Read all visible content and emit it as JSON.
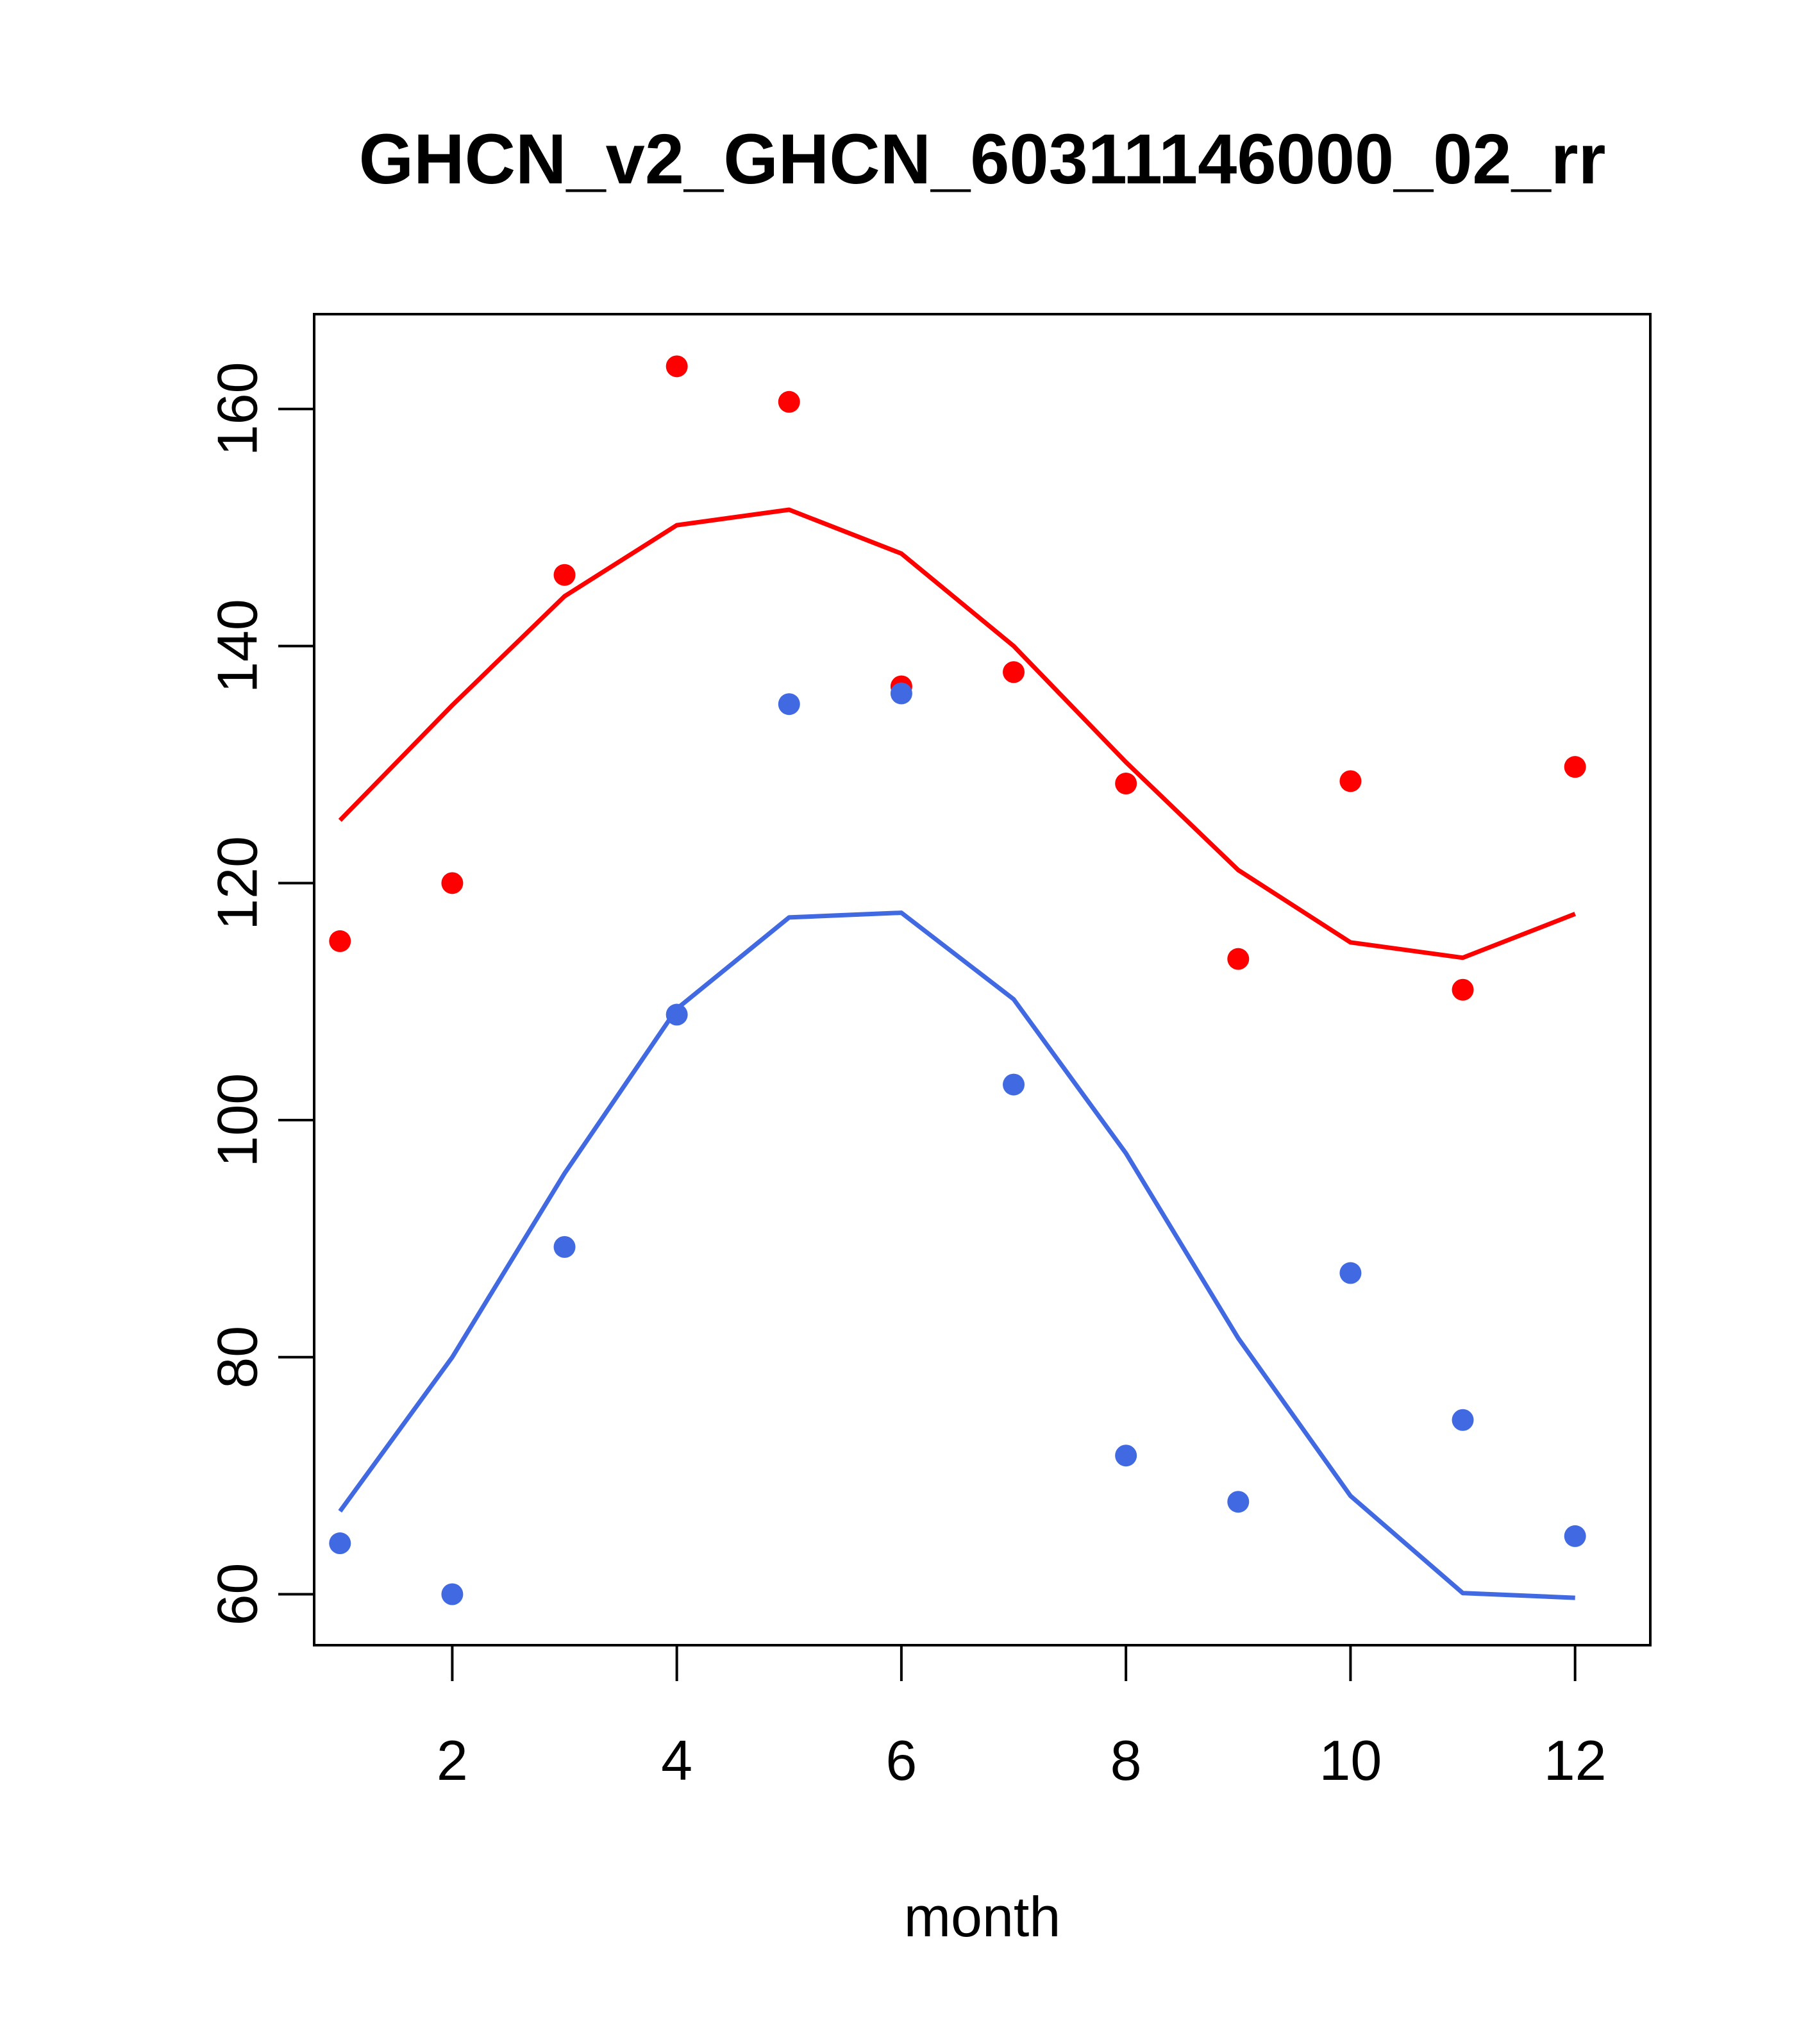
{
  "chart_data": {
    "type": "scatter",
    "title": "GHCN_v2_GHCN_60311146000_02_rr",
    "xlabel": "month",
    "ylabel": "",
    "xlim": [
      0.77,
      12.67
    ],
    "ylim": [
      55.7,
      168
    ],
    "x_ticks": [
      2,
      4,
      6,
      8,
      10,
      12
    ],
    "y_ticks": [
      60,
      80,
      100,
      120,
      140,
      160
    ],
    "grid": false,
    "legend": "none",
    "series": [
      {
        "color": "#ff0000",
        "points_x": [
          1,
          2,
          3,
          4,
          5,
          6,
          7,
          8,
          9,
          10,
          11,
          12
        ],
        "points_y": [
          115.1,
          120.0,
          146.0,
          163.6,
          160.6,
          136.6,
          137.8,
          128.4,
          113.6,
          128.6,
          111.0,
          129.8
        ],
        "line_x": [
          1,
          2,
          3,
          4,
          5,
          6,
          7,
          8,
          9,
          10,
          11,
          12
        ],
        "line_y": [
          125.3,
          135.0,
          144.2,
          150.2,
          151.5,
          147.8,
          140.0,
          130.2,
          121.1,
          115.0,
          113.7,
          117.4
        ]
      },
      {
        "color": "#4169e1",
        "points_x": [
          1,
          2,
          3,
          4,
          5,
          6,
          7,
          8,
          9,
          10,
          11,
          12
        ],
        "points_y": [
          64.3,
          60.0,
          89.3,
          108.9,
          135.1,
          136.0,
          103.0,
          71.7,
          67.8,
          87.1,
          74.7,
          64.9
        ],
        "line_x": [
          1,
          2,
          3,
          4,
          5,
          6,
          7,
          8,
          9,
          10,
          11,
          12
        ],
        "line_y": [
          67.0,
          80.0,
          95.5,
          109.4,
          117.1,
          117.5,
          110.2,
          97.2,
          81.6,
          68.3,
          60.1,
          59.7
        ]
      }
    ]
  }
}
